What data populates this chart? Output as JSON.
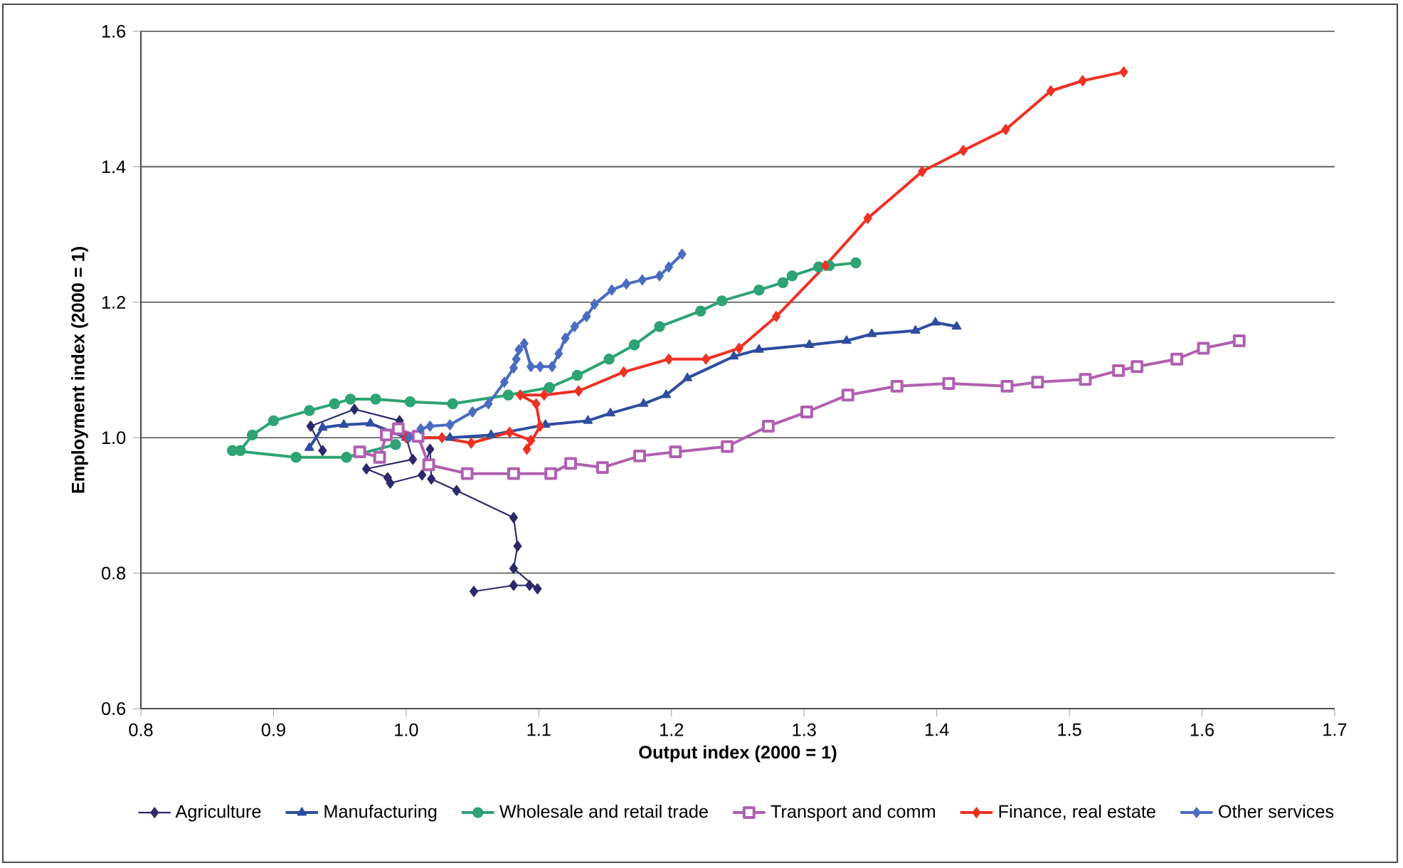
{
  "chart_data": {
    "type": "line",
    "xlabel": "Output index (2000 = 1)",
    "ylabel": "Employment index (2000 = 1)",
    "xlim": [
      0.8,
      1.7
    ],
    "xticks": [
      {
        "value": 0.8,
        "label": "0.8"
      },
      {
        "value": 0.9,
        "label": "0.9"
      },
      {
        "value": 1.0,
        "label": "1.0"
      },
      {
        "value": 1.1,
        "label": "1.1"
      },
      {
        "value": 1.2,
        "label": "1.2"
      },
      {
        "value": 1.3,
        "label": "1.3"
      },
      {
        "value": 1.4,
        "label": "1.4"
      },
      {
        "value": 1.5,
        "label": "1.5"
      },
      {
        "value": 1.6,
        "label": "1.6"
      },
      {
        "value": 1.7,
        "label": "1.7"
      }
    ],
    "ylim": [
      0.6,
      1.6
    ],
    "yticks": [
      {
        "value": 0.6,
        "label": "0.6"
      },
      {
        "value": 0.8,
        "label": "0.8"
      },
      {
        "value": 1.0,
        "label": "1.0"
      },
      {
        "value": 1.2,
        "label": "1.2"
      },
      {
        "value": 1.4,
        "label": "1.4"
      },
      {
        "value": 1.6,
        "label": "1.6"
      }
    ],
    "grid": "y",
    "legend": "bottom",
    "series": [
      {
        "name": "Agriculture",
        "color": "#2b2a6b",
        "marker": "diamond",
        "x": [
          0.937,
          0.928,
          0.961,
          0.995,
          1.0,
          1.005,
          0.97,
          0.986,
          0.988,
          1.012,
          1.018,
          1.019,
          1.038,
          1.081,
          1.084,
          1.081,
          1.099,
          1.093,
          1.081,
          1.051
        ],
        "values": [
          0.981,
          1.017,
          1.042,
          1.025,
          1.0,
          0.968,
          0.954,
          0.941,
          0.933,
          0.945,
          0.983,
          0.939,
          0.922,
          0.882,
          0.84,
          0.807,
          0.777,
          0.782,
          0.782,
          0.773
        ]
      },
      {
        "name": "Manufacturing",
        "color": "#2e4da0",
        "marker": "triangle",
        "x": [
          0.927,
          0.937,
          0.953,
          0.973,
          1.0,
          1.033,
          1.064,
          1.105,
          1.137,
          1.154,
          1.179,
          1.196,
          1.212,
          1.247,
          1.266,
          1.304,
          1.332,
          1.351,
          1.384,
          1.399,
          1.415
        ],
        "values": [
          0.985,
          1.015,
          1.019,
          1.021,
          1.0,
          1.0,
          1.004,
          1.019,
          1.025,
          1.036,
          1.05,
          1.063,
          1.088,
          1.12,
          1.13,
          1.137,
          1.143,
          1.153,
          1.158,
          1.17,
          1.164
        ]
      },
      {
        "name": "Wholesale and retail trade",
        "color": "#2ea373",
        "marker": "circle",
        "x": [
          0.992,
          0.955,
          0.917,
          0.869,
          0.875,
          0.884,
          0.9,
          0.927,
          0.946,
          0.958,
          0.977,
          1.003,
          1.035,
          1.077,
          1.108,
          1.129,
          1.153,
          1.172,
          1.191,
          1.222,
          1.238,
          1.266,
          1.284,
          1.291,
          1.311,
          1.319,
          1.339
        ],
        "values": [
          0.99,
          0.971,
          0.971,
          0.981,
          0.981,
          1.004,
          1.025,
          1.04,
          1.05,
          1.057,
          1.057,
          1.053,
          1.05,
          1.063,
          1.074,
          1.092,
          1.116,
          1.137,
          1.164,
          1.187,
          1.202,
          1.218,
          1.229,
          1.239,
          1.252,
          1.254,
          1.258
        ]
      },
      {
        "name": "Transport and comm",
        "color": "#b060b0",
        "marker": "square",
        "x": [
          0.965,
          0.98,
          0.985,
          0.994,
          1.009,
          1.017,
          1.046,
          1.081,
          1.109,
          1.124,
          1.148,
          1.176,
          1.203,
          1.242,
          1.273,
          1.302,
          1.333,
          1.37,
          1.409,
          1.453,
          1.476,
          1.512,
          1.537,
          1.551,
          1.581,
          1.601,
          1.628
        ],
        "values": [
          0.979,
          0.971,
          1.004,
          1.013,
          1.002,
          0.96,
          0.947,
          0.947,
          0.947,
          0.962,
          0.956,
          0.973,
          0.979,
          0.987,
          1.017,
          1.038,
          1.063,
          1.076,
          1.08,
          1.076,
          1.082,
          1.086,
          1.099,
          1.105,
          1.116,
          1.132,
          1.143
        ]
      },
      {
        "name": "Finance, real estate",
        "color": "#ee3124",
        "marker": "diamond",
        "x": [
          1.0,
          1.027,
          1.049,
          1.078,
          1.094,
          1.091,
          1.101,
          1.098,
          1.086,
          1.104,
          1.13,
          1.164,
          1.198,
          1.226,
          1.251,
          1.279,
          1.316,
          1.348,
          1.389,
          1.42,
          1.452,
          1.486,
          1.51,
          1.541
        ],
        "values": [
          1.0,
          1.0,
          0.992,
          1.008,
          0.996,
          0.983,
          1.017,
          1.05,
          1.063,
          1.063,
          1.069,
          1.097,
          1.116,
          1.116,
          1.132,
          1.179,
          1.254,
          1.324,
          1.393,
          1.424,
          1.455,
          1.512,
          1.527,
          1.54
        ]
      },
      {
        "name": "Other services",
        "color": "#4a6cc0",
        "marker": "diamond",
        "x": [
          1.002,
          1.011,
          1.018,
          1.033,
          1.05,
          1.062,
          1.074,
          1.081,
          1.083,
          1.085,
          1.089,
          1.094,
          1.101,
          1.11,
          1.115,
          1.12,
          1.127,
          1.136,
          1.142,
          1.155,
          1.166,
          1.178,
          1.191,
          1.198,
          1.208
        ],
        "values": [
          1.0,
          1.013,
          1.017,
          1.019,
          1.038,
          1.05,
          1.082,
          1.103,
          1.116,
          1.13,
          1.139,
          1.105,
          1.105,
          1.105,
          1.124,
          1.147,
          1.164,
          1.179,
          1.197,
          1.218,
          1.227,
          1.233,
          1.239,
          1.252,
          1.271
        ]
      }
    ]
  }
}
